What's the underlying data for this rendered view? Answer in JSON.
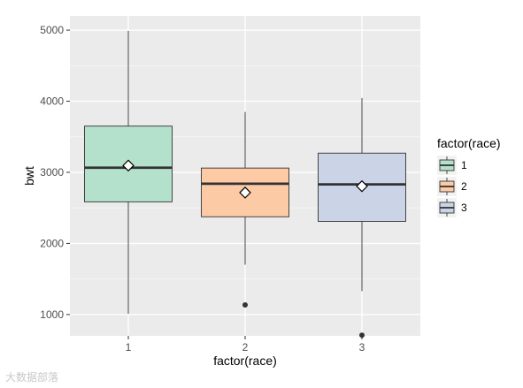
{
  "chart_data": {
    "type": "boxplot",
    "xlabel": "factor(race)",
    "ylabel": "bwt",
    "categories": [
      "1",
      "2",
      "3"
    ],
    "ylim": [
      700,
      5200
    ],
    "y_ticks": [
      1000,
      2000,
      3000,
      4000,
      5000
    ],
    "grid": true,
    "legend": {
      "title": "factor(race)",
      "placement": "right",
      "entries": [
        "1",
        "2",
        "3"
      ]
    },
    "boxes": [
      {
        "category": "1",
        "min": 1010,
        "q1": 2585,
        "median": 3065,
        "q3": 3650,
        "max": 4990,
        "mean": 3095,
        "outliers": [],
        "color": "#b4e1cc"
      },
      {
        "category": "2",
        "min": 1700,
        "q1": 2375,
        "median": 2840,
        "q3": 3060,
        "max": 3850,
        "mean": 2715,
        "outliers": [
          1135
        ],
        "color": "#fccba6"
      },
      {
        "category": "3",
        "min": 1330,
        "q1": 2310,
        "median": 2830,
        "q3": 3270,
        "max": 4045,
        "mean": 2805,
        "outliers": [
          710
        ],
        "color": "#cbd3e7"
      }
    ]
  },
  "watermark": "大数据部落"
}
